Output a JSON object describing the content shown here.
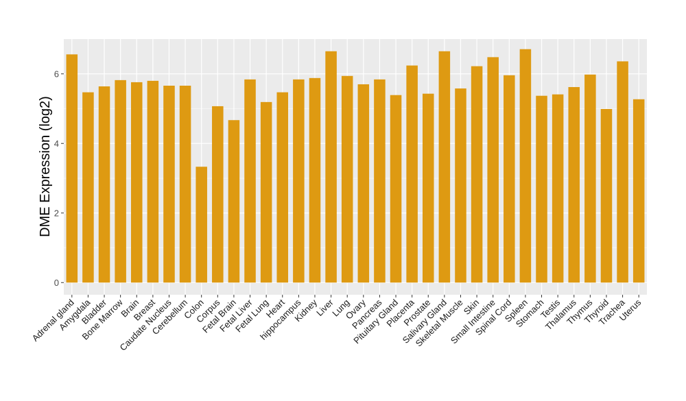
{
  "chart_data": {
    "type": "bar",
    "title": "",
    "xlabel": "",
    "ylabel": "DME Expression (log2)",
    "ylim": [
      -0.35,
      7.0
    ],
    "yticks": [
      0,
      2,
      4,
      6
    ],
    "grid": true,
    "bar_color": "#DE9A12",
    "panel_bg": "#EBEBEB",
    "categories": [
      "Adrenal gland",
      "Amygdala",
      "Bladder",
      "Bone Marrow",
      "Brain",
      "Breast",
      "Caudate Nucleus",
      "Cerebellum",
      "Colon",
      "Corpus",
      "Fetal Brain",
      "Fetal Liver",
      "Fetal Lung",
      "Heart",
      "hippocampus",
      "Kidney",
      "Liver",
      "Lung",
      "Ovary",
      "Pancreas",
      "Pituitary Gland",
      "Placenta",
      "Prostate",
      "Salivary Gland",
      "Skeletal Muscle",
      "Skin",
      "Small Intestine",
      "Spinal Cord",
      "Spleen",
      "Stomach",
      "Testis",
      "Thalamus",
      "Thymus",
      "Thyroid",
      "Trachea",
      "Uterus"
    ],
    "values": [
      6.56,
      5.47,
      5.64,
      5.82,
      5.76,
      5.8,
      5.66,
      5.66,
      3.33,
      5.07,
      4.67,
      5.84,
      5.19,
      5.47,
      5.84,
      5.88,
      6.65,
      5.94,
      5.7,
      5.84,
      5.39,
      6.24,
      5.43,
      6.65,
      5.58,
      6.22,
      6.48,
      5.96,
      6.71,
      5.37,
      5.41,
      5.62,
      5.98,
      4.99,
      6.36,
      5.27
    ]
  }
}
